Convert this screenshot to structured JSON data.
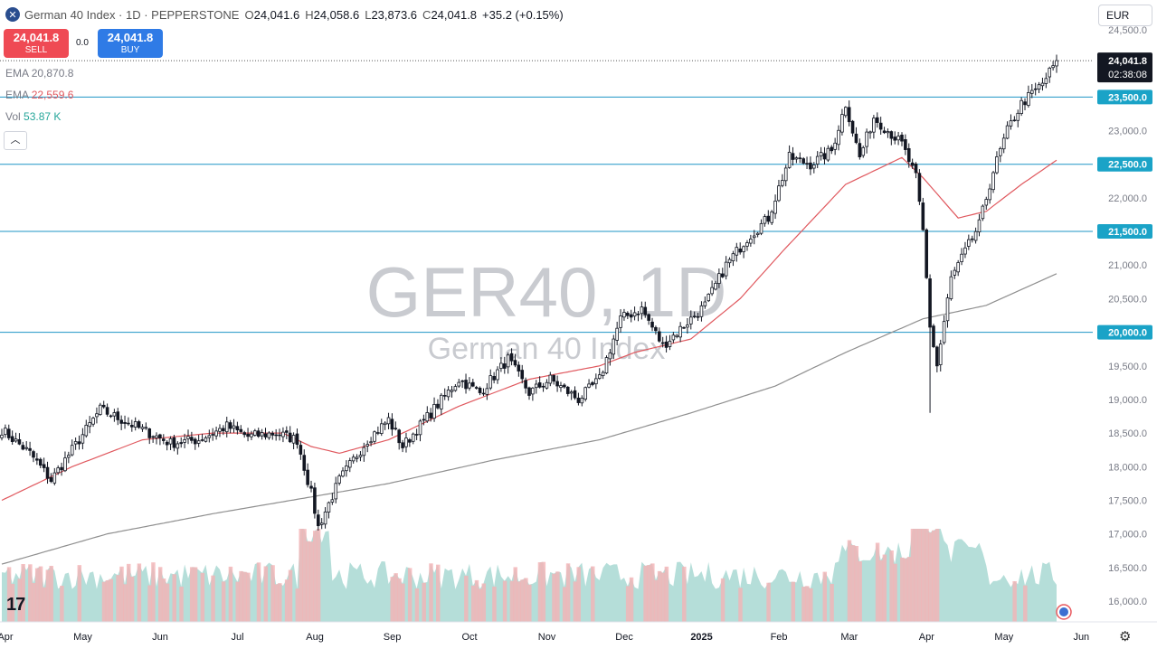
{
  "header": {
    "symbol_icon": "close-x-icon",
    "title": "German 40 Index · 1D · PEPPERSTONE",
    "open_label": "O",
    "open": "24,041.6",
    "high_label": "H",
    "high": "24,058.6",
    "low_label": "L",
    "low": "23,873.6",
    "close_label": "C",
    "close": "24,041.8",
    "change": "+35.2 (+0.15%)"
  },
  "trade": {
    "sell_price": "24,041.8",
    "sell_label": "SELL",
    "spread": "0.0",
    "buy_price": "24,041.8",
    "buy_label": "BUY"
  },
  "indicators": [
    {
      "name": "EMA",
      "value": "20,870.8",
      "color": "#787b86"
    },
    {
      "name": "EMA",
      "value": "22,559.6",
      "color": "#e0585e"
    },
    {
      "name": "Vol",
      "value": "53.87 K",
      "color": "#26a69a"
    }
  ],
  "collapse_icon": "chevron-up-icon",
  "currency": "EUR",
  "watermark": {
    "symbol": "GER40, 1D",
    "name": "German 40 Index"
  },
  "last_price": {
    "value": "24,041.8",
    "countdown": "02:38:08"
  },
  "levels": [
    {
      "value": 23500,
      "label": "23,500.0"
    },
    {
      "value": 22500,
      "label": "22,500.0"
    },
    {
      "value": 21500,
      "label": "21,500.0"
    },
    {
      "value": 20000,
      "label": "20,000.0"
    }
  ],
  "colors": {
    "up": "#131722",
    "down": "#131722",
    "level_line": "#1e95c6",
    "level_tag": "#1aa3c7",
    "ema_short": "#e0585e",
    "ema_long": "#8f8f8f",
    "vol_up": "#a8d8d2",
    "vol_down": "#f4b3b5"
  },
  "chart_data": {
    "type": "candlestick",
    "y_ticks": [
      "24,500.0",
      "24,000.0",
      "23,500.0",
      "23,000.0",
      "22,500.0",
      "22,000.0",
      "21,500.0",
      "21,000.0",
      "20,500.0",
      "20,000.0",
      "19,500.0",
      "19,000.0",
      "18,500.0",
      "18,000.0",
      "17,500.0",
      "17,000.0",
      "16,500.0",
      "16,000.0"
    ],
    "y_tick_values": [
      24500,
      24000,
      23500,
      23000,
      22500,
      22000,
      21500,
      21000,
      20500,
      20000,
      19500,
      19000,
      18500,
      18000,
      17500,
      17000,
      16500,
      16000
    ],
    "ylim": [
      15650,
      24900
    ],
    "x_ticks": [
      "Apr",
      "May",
      "Jun",
      "Jul",
      "Aug",
      "Sep",
      "Oct",
      "Nov",
      "Dec",
      "2025",
      "Feb",
      "Mar",
      "Apr",
      "May",
      "Jun"
    ],
    "x_tick_index": [
      0,
      22,
      44,
      66,
      88,
      110,
      132,
      154,
      176,
      198,
      220,
      240,
      262,
      284,
      306
    ],
    "price_anchors": [
      [
        0,
        18550
      ],
      [
        8,
        18200
      ],
      [
        14,
        17800
      ],
      [
        22,
        18400
      ],
      [
        28,
        18850
      ],
      [
        34,
        18700
      ],
      [
        42,
        18500
      ],
      [
        48,
        18350
      ],
      [
        56,
        18400
      ],
      [
        64,
        18600
      ],
      [
        70,
        18450
      ],
      [
        78,
        18500
      ],
      [
        84,
        18400
      ],
      [
        88,
        17600
      ],
      [
        90,
        17100
      ],
      [
        96,
        17800
      ],
      [
        104,
        18400
      ],
      [
        110,
        18700
      ],
      [
        114,
        18300
      ],
      [
        122,
        18800
      ],
      [
        130,
        19300
      ],
      [
        136,
        19100
      ],
      [
        144,
        19600
      ],
      [
        150,
        19100
      ],
      [
        156,
        19300
      ],
      [
        164,
        19000
      ],
      [
        170,
        19300
      ],
      [
        176,
        20200
      ],
      [
        182,
        20350
      ],
      [
        188,
        19800
      ],
      [
        194,
        20100
      ],
      [
        200,
        20400
      ],
      [
        206,
        21000
      ],
      [
        212,
        21400
      ],
      [
        218,
        21700
      ],
      [
        224,
        22600
      ],
      [
        230,
        22500
      ],
      [
        236,
        22700
      ],
      [
        240,
        23400
      ],
      [
        244,
        22600
      ],
      [
        248,
        23200
      ],
      [
        252,
        23000
      ],
      [
        256,
        22800
      ],
      [
        260,
        22300
      ],
      [
        262,
        21500
      ],
      [
        264,
        20100
      ],
      [
        266,
        19500
      ],
      [
        270,
        20800
      ],
      [
        274,
        21200
      ],
      [
        278,
        21600
      ],
      [
        282,
        22400
      ],
      [
        286,
        23000
      ],
      [
        290,
        23400
      ],
      [
        296,
        23700
      ],
      [
        300,
        24041.8
      ]
    ],
    "ema_short_anchors": [
      [
        0,
        17500
      ],
      [
        20,
        18000
      ],
      [
        40,
        18400
      ],
      [
        60,
        18500
      ],
      [
        80,
        18500
      ],
      [
        88,
        18300
      ],
      [
        96,
        18200
      ],
      [
        110,
        18400
      ],
      [
        130,
        18900
      ],
      [
        150,
        19300
      ],
      [
        170,
        19500
      ],
      [
        180,
        19700
      ],
      [
        196,
        19900
      ],
      [
        210,
        20500
      ],
      [
        222,
        21200
      ],
      [
        240,
        22200
      ],
      [
        256,
        22600
      ],
      [
        262,
        22300
      ],
      [
        272,
        21700
      ],
      [
        280,
        21800
      ],
      [
        290,
        22200
      ],
      [
        300,
        22559.6
      ]
    ],
    "ema_long_anchors": [
      [
        0,
        16550
      ],
      [
        30,
        17000
      ],
      [
        60,
        17300
      ],
      [
        88,
        17550
      ],
      [
        110,
        17750
      ],
      [
        140,
        18100
      ],
      [
        170,
        18400
      ],
      [
        196,
        18800
      ],
      [
        220,
        19200
      ],
      [
        240,
        19700
      ],
      [
        262,
        20200
      ],
      [
        280,
        20400
      ],
      [
        300,
        20870.8
      ]
    ],
    "volume_note": "volume histogram drawn beneath price, colored by candle direction"
  }
}
